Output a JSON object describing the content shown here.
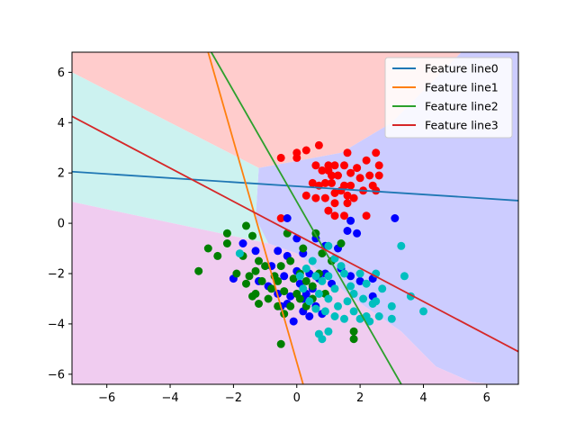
{
  "chart_data": {
    "type": "scatter",
    "title": "",
    "xlabel": "",
    "ylabel": "",
    "xlim": [
      -7.1,
      7.0
    ],
    "ylim": [
      -6.4,
      6.8
    ],
    "xticks": [
      -6,
      -4,
      -2,
      0,
      2,
      4,
      6
    ],
    "yticks": [
      -6,
      -4,
      -2,
      0,
      2,
      4,
      6
    ],
    "tick_labels_x": [
      "−6",
      "−4",
      "−2",
      "0",
      "2",
      "4",
      "6"
    ],
    "tick_labels_y": [
      "−6",
      "−4",
      "−2",
      "0",
      "2",
      "4",
      "6"
    ],
    "grid": false,
    "legend_position": "top-right",
    "regions": [
      {
        "class": "red",
        "color": "#ffcccc",
        "polygon": [
          [
            -7.1,
            6.8
          ],
          [
            7.0,
            6.8
          ],
          [
            7.0,
            7.0
          ],
          [
            6.5,
            7.0
          ],
          [
            5.2,
            6.8
          ],
          [
            3.0,
            4.0
          ],
          [
            1.4,
            2.8
          ],
          [
            -1.2,
            2.2
          ],
          [
            -7.1,
            6.0
          ]
        ]
      },
      {
        "class": "blue",
        "color": "#ccccff",
        "polygon": [
          [
            -1.2,
            2.2
          ],
          [
            1.4,
            2.8
          ],
          [
            3.0,
            4.0
          ],
          [
            5.2,
            6.8
          ],
          [
            7.0,
            6.8
          ],
          [
            7.0,
            -6.4
          ],
          [
            6.2,
            -6.4
          ],
          [
            5.5,
            -6.3
          ],
          [
            4.4,
            -5.7
          ],
          [
            3.3,
            -4.3
          ],
          [
            1.8,
            -3.0
          ],
          [
            0.0,
            -1.2
          ],
          [
            -0.9,
            -0.8
          ],
          [
            -1.3,
            0.2
          ]
        ]
      },
      {
        "class": "cyan",
        "color": "#ccf2f0",
        "polygon": [
          [
            -7.1,
            6.0
          ],
          [
            -1.2,
            2.2
          ],
          [
            -1.3,
            0.2
          ],
          [
            -0.9,
            -0.8
          ],
          [
            -7.1,
            0.85
          ]
        ]
      },
      {
        "class": "magenta",
        "color": "#f0ccf0",
        "polygon": [
          [
            -7.1,
            0.85
          ],
          [
            -0.9,
            -0.8
          ],
          [
            0.0,
            -1.2
          ],
          [
            1.8,
            -3.0
          ],
          [
            3.3,
            -4.3
          ],
          [
            4.4,
            -5.7
          ],
          [
            5.5,
            -6.3
          ],
          [
            6.2,
            -6.4
          ],
          [
            -7.1,
            -6.4
          ]
        ]
      }
    ],
    "lines": [
      {
        "name": "Feature line0",
        "color": "#1f77b4",
        "points": [
          [
            -7.1,
            2.05
          ],
          [
            7.0,
            0.9
          ]
        ]
      },
      {
        "name": "Feature line1",
        "color": "#ff7f0e",
        "points": [
          [
            -2.8,
            6.8
          ],
          [
            0.2,
            -6.4
          ]
        ]
      },
      {
        "name": "Feature line2",
        "color": "#2ca02c",
        "points": [
          [
            -2.7,
            6.8
          ],
          [
            3.3,
            -6.4
          ]
        ]
      },
      {
        "name": "Feature line3",
        "color": "#d62728",
        "points": [
          [
            -7.1,
            4.25
          ],
          [
            7.0,
            -5.1
          ]
        ]
      }
    ],
    "series": [
      {
        "color": "#ff0000",
        "points": [
          [
            -0.5,
            2.6
          ],
          [
            0.0,
            2.6
          ],
          [
            0.0,
            2.8
          ],
          [
            0.3,
            2.9
          ],
          [
            0.7,
            3.1
          ],
          [
            1.6,
            2.8
          ],
          [
            2.5,
            2.8
          ],
          [
            0.6,
            2.3
          ],
          [
            0.8,
            2.1
          ],
          [
            1.0,
            2.3
          ],
          [
            1.2,
            2.3
          ],
          [
            1.5,
            2.3
          ],
          [
            1.9,
            2.2
          ],
          [
            2.2,
            2.5
          ],
          [
            2.6,
            2.3
          ],
          [
            0.7,
            1.5
          ],
          [
            0.9,
            1.6
          ],
          [
            1.1,
            1.6
          ],
          [
            1.3,
            1.9
          ],
          [
            1.5,
            1.5
          ],
          [
            1.7,
            1.5
          ],
          [
            2.0,
            1.8
          ],
          [
            2.3,
            1.9
          ],
          [
            2.6,
            1.9
          ],
          [
            0.3,
            1.1
          ],
          [
            0.6,
            1.0
          ],
          [
            0.9,
            1.0
          ],
          [
            1.2,
            1.2
          ],
          [
            1.4,
            1.3
          ],
          [
            1.6,
            1.1
          ],
          [
            1.8,
            1.0
          ],
          [
            2.1,
            1.3
          ],
          [
            2.4,
            1.5
          ],
          [
            1.2,
            0.8
          ],
          [
            1.6,
            0.8
          ],
          [
            1.5,
            0.3
          ],
          [
            1.2,
            0.3
          ],
          [
            1.0,
            0.5
          ],
          [
            2.2,
            0.3
          ],
          [
            0.5,
            1.6
          ],
          [
            1.1,
            1.9
          ],
          [
            1.7,
            2.0
          ],
          [
            -0.5,
            0.2
          ],
          [
            2.5,
            1.3
          ],
          [
            1.0,
            2.1
          ]
        ]
      },
      {
        "color": "#0000ff",
        "points": [
          [
            -0.3,
            0.2
          ],
          [
            3.1,
            0.2
          ],
          [
            1.7,
            0.1
          ],
          [
            1.6,
            -0.3
          ],
          [
            1.9,
            -0.4
          ],
          [
            -1.7,
            -0.8
          ],
          [
            -0.6,
            -1.1
          ],
          [
            -1.3,
            -1.1
          ],
          [
            0.0,
            -0.6
          ],
          [
            -0.3,
            -1.3
          ],
          [
            0.2,
            -1.2
          ],
          [
            0.6,
            -0.6
          ],
          [
            0.9,
            -0.9
          ],
          [
            1.3,
            -1.0
          ],
          [
            -2.0,
            -2.2
          ],
          [
            -1.2,
            -2.3
          ],
          [
            -0.9,
            -2.5
          ],
          [
            -0.6,
            -2.8
          ],
          [
            -0.3,
            -3.2
          ],
          [
            -0.1,
            -3.9
          ],
          [
            0.2,
            -3.5
          ],
          [
            0.4,
            -3.7
          ],
          [
            0.5,
            -2.6
          ],
          [
            0.7,
            -2.2
          ],
          [
            0.9,
            -2.0
          ],
          [
            1.1,
            -2.4
          ],
          [
            1.4,
            -1.8
          ],
          [
            1.7,
            -2.1
          ],
          [
            2.0,
            -2.3
          ],
          [
            2.4,
            -2.2
          ],
          [
            -0.4,
            -2.1
          ],
          [
            0.1,
            -2.4
          ],
          [
            0.3,
            -2.8
          ],
          [
            -0.2,
            -2.9
          ],
          [
            -0.5,
            -3.3
          ],
          [
            0.6,
            -3.3
          ],
          [
            0.8,
            -3.6
          ],
          [
            0.0,
            -1.9
          ],
          [
            0.2,
            -3.0
          ],
          [
            -0.8,
            -1.7
          ],
          [
            2.4,
            -2.9
          ],
          [
            0.4,
            -2.0
          ]
        ]
      },
      {
        "color": "#008000",
        "points": [
          [
            -2.2,
            -0.4
          ],
          [
            -2.2,
            -0.8
          ],
          [
            -1.6,
            -0.1
          ],
          [
            -1.4,
            -0.5
          ],
          [
            -0.3,
            -0.4
          ],
          [
            0.6,
            -0.4
          ],
          [
            -2.8,
            -1.0
          ],
          [
            -2.5,
            -1.3
          ],
          [
            -3.1,
            -1.9
          ],
          [
            -1.7,
            -1.3
          ],
          [
            -1.2,
            -1.5
          ],
          [
            -1.0,
            -1.7
          ],
          [
            -0.5,
            -1.7
          ],
          [
            -1.9,
            -2.0
          ],
          [
            -1.5,
            -2.1
          ],
          [
            -1.3,
            -1.9
          ],
          [
            -1.1,
            -2.3
          ],
          [
            -0.8,
            -2.6
          ],
          [
            -0.6,
            -2.3
          ],
          [
            -0.4,
            -2.7
          ],
          [
            -0.1,
            -2.2
          ],
          [
            0.1,
            -2.0
          ],
          [
            0.3,
            -2.3
          ],
          [
            0.5,
            -2.5
          ],
          [
            -1.4,
            -2.9
          ],
          [
            -1.2,
            -3.2
          ],
          [
            -0.9,
            -3.0
          ],
          [
            -0.6,
            -3.3
          ],
          [
            -0.4,
            -3.6
          ],
          [
            -0.2,
            -3.3
          ],
          [
            0.1,
            -3.0
          ],
          [
            0.3,
            -3.3
          ],
          [
            0.5,
            -3.0
          ],
          [
            -1.6,
            -2.4
          ],
          [
            0.0,
            -2.8
          ],
          [
            -0.5,
            -4.8
          ],
          [
            1.8,
            -4.3
          ],
          [
            1.8,
            -4.6
          ],
          [
            0.8,
            -1.2
          ],
          [
            1.1,
            -1.5
          ],
          [
            1.4,
            -0.8
          ],
          [
            0.2,
            -1.0
          ],
          [
            0.7,
            -2.0
          ],
          [
            -0.2,
            -1.5
          ],
          [
            -1.3,
            -2.8
          ],
          [
            0.9,
            -2.8
          ],
          [
            -0.7,
            -2.1
          ]
        ]
      },
      {
        "color": "#00bfbf",
        "points": [
          [
            -1.8,
            -1.2
          ],
          [
            1.0,
            -0.9
          ],
          [
            1.2,
            -1.4
          ],
          [
            1.4,
            -1.7
          ],
          [
            3.3,
            -0.9
          ],
          [
            0.3,
            -1.8
          ],
          [
            0.6,
            -2.1
          ],
          [
            0.8,
            -2.3
          ],
          [
            1.0,
            -2.1
          ],
          [
            1.2,
            -2.6
          ],
          [
            1.5,
            -2.0
          ],
          [
            1.7,
            -2.5
          ],
          [
            2.0,
            -2.0
          ],
          [
            2.2,
            -2.4
          ],
          [
            2.5,
            -2.0
          ],
          [
            2.7,
            -2.6
          ],
          [
            3.4,
            -2.1
          ],
          [
            3.6,
            -2.9
          ],
          [
            4.0,
            -3.5
          ],
          [
            3.0,
            -3.3
          ],
          [
            3.0,
            -3.8
          ],
          [
            0.6,
            -3.4
          ],
          [
            0.9,
            -3.5
          ],
          [
            1.2,
            -3.7
          ],
          [
            1.5,
            -3.8
          ],
          [
            1.8,
            -3.5
          ],
          [
            2.0,
            -3.8
          ],
          [
            2.3,
            -3.9
          ],
          [
            2.6,
            -3.7
          ],
          [
            2.4,
            -3.2
          ],
          [
            2.1,
            -3.0
          ],
          [
            1.6,
            -3.1
          ],
          [
            1.3,
            -3.3
          ],
          [
            1.0,
            -3.0
          ],
          [
            0.7,
            -2.8
          ],
          [
            0.4,
            -3.1
          ],
          [
            0.2,
            -2.6
          ],
          [
            0.1,
            -2.1
          ],
          [
            0.7,
            -4.4
          ],
          [
            0.8,
            -4.6
          ],
          [
            1.0,
            -4.3
          ],
          [
            2.2,
            -3.7
          ],
          [
            2.5,
            -3.1
          ],
          [
            1.8,
            -2.8
          ],
          [
            0.5,
            -1.5
          ]
        ]
      }
    ]
  }
}
